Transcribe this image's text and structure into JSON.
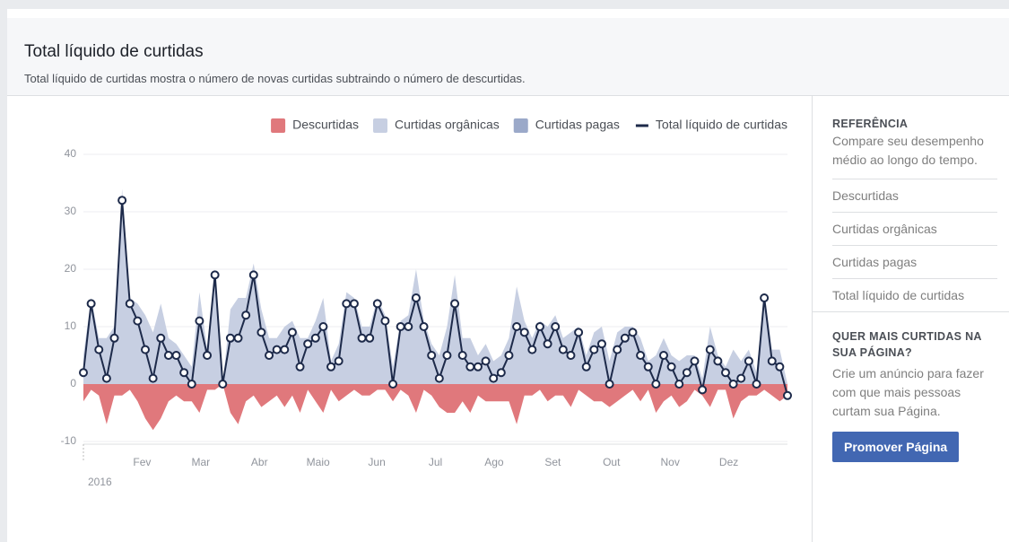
{
  "header": {
    "title": "Total líquido de curtidas",
    "subtitle": "Total líquido de curtidas mostra o número de novas curtidas subtraindo o número de descurtidas."
  },
  "chart_data": {
    "type": "area-line",
    "ylim": [
      -10,
      40
    ],
    "yticks": [
      -10,
      0,
      10,
      20,
      30,
      40
    ],
    "month_labels": [
      "Fev",
      "Mar",
      "Abr",
      "Maio",
      "Jun",
      "Jul",
      "Ago",
      "Set",
      "Out",
      "Nov",
      "Dez"
    ],
    "year_label": "2016",
    "grid": true,
    "series": [
      {
        "name": "Descurtidas",
        "color": "#e0787c",
        "kind": "area",
        "values": [
          -3,
          -1,
          -2,
          -7,
          -2,
          -2,
          -1,
          -3,
          -6,
          -8,
          -6,
          -3,
          -2,
          -3,
          -3,
          -5,
          -1,
          -1,
          0,
          -5,
          -7,
          -3,
          -2,
          -4,
          -3,
          -2,
          -4,
          -2,
          -5,
          -1,
          -3,
          -5,
          -1,
          -3,
          -2,
          -1,
          -2,
          -2,
          -1,
          -1,
          -3,
          -1,
          -2,
          -5,
          -1,
          -2,
          -4,
          -5,
          -5,
          -3,
          -5,
          -2,
          -3,
          -3,
          -3,
          -3,
          -7,
          -2,
          -2,
          -1,
          -3,
          -2,
          -2,
          -4,
          -1,
          -2,
          -3,
          -3,
          -4,
          -3,
          -2,
          -1,
          -3,
          -1,
          -5,
          -3,
          -2,
          -4,
          -3,
          -1,
          -2,
          -4,
          -1,
          -1,
          -6,
          -3,
          -2,
          -2,
          -1,
          -2,
          -3,
          -2
        ]
      },
      {
        "name": "Curtidas orgânicas",
        "color": "#c7cfe2",
        "kind": "area",
        "values": [
          5,
          15,
          8,
          8,
          10,
          34,
          15,
          14,
          12,
          9,
          14,
          8,
          7,
          5,
          3,
          16,
          6,
          20,
          0,
          13,
          15,
          15,
          21,
          13,
          8,
          8,
          10,
          11,
          8,
          8,
          11,
          15,
          4,
          7,
          16,
          15,
          10,
          10,
          15,
          12,
          3,
          11,
          12,
          20,
          11,
          7,
          5,
          10,
          19,
          8,
          8,
          5,
          7,
          4,
          5,
          8,
          17,
          11,
          8,
          11,
          10,
          12,
          8,
          9,
          10,
          5,
          9,
          10,
          4,
          9,
          10,
          10,
          8,
          4,
          5,
          8,
          5,
          4,
          5,
          5,
          1,
          10,
          5,
          3,
          6,
          4,
          6,
          2,
          16,
          6,
          6,
          0
        ]
      },
      {
        "name": "Curtidas pagas",
        "color": "#9ba9c9",
        "kind": "area",
        "values": [
          0,
          0,
          0,
          0,
          0,
          0,
          0,
          0,
          0,
          0,
          0,
          0,
          0,
          0,
          0,
          0,
          0,
          0,
          0,
          0,
          0,
          0,
          0,
          0,
          0,
          0,
          0,
          0,
          0,
          0,
          0,
          0,
          0,
          0,
          0,
          0,
          0,
          0,
          0,
          0,
          0,
          0,
          0,
          0,
          0,
          0,
          0,
          0,
          0,
          0,
          0,
          0,
          0,
          0,
          0,
          0,
          0,
          0,
          0,
          0,
          0,
          0,
          0,
          0,
          0,
          0,
          0,
          0,
          0,
          0,
          0,
          0,
          0,
          0,
          0,
          0,
          0,
          0,
          0,
          0,
          0,
          0,
          0,
          0,
          0,
          0,
          0,
          0,
          0,
          0,
          0,
          0
        ]
      },
      {
        "name": "Total líquido de curtidas",
        "color": "#1d2a4a",
        "kind": "line",
        "values": [
          2,
          14,
          6,
          1,
          8,
          32,
          14,
          11,
          6,
          1,
          8,
          5,
          5,
          2,
          0,
          11,
          5,
          19,
          0,
          8,
          8,
          12,
          19,
          9,
          5,
          6,
          6,
          9,
          3,
          7,
          8,
          10,
          3,
          4,
          14,
          14,
          8,
          8,
          14,
          11,
          0,
          10,
          10,
          15,
          10,
          5,
          1,
          5,
          14,
          5,
          3,
          3,
          4,
          1,
          2,
          5,
          10,
          9,
          6,
          10,
          7,
          10,
          6,
          5,
          9,
          3,
          6,
          7,
          0,
          6,
          8,
          9,
          5,
          3,
          0,
          5,
          3,
          0,
          2,
          4,
          -1,
          6,
          4,
          2,
          0,
          1,
          4,
          0,
          15,
          4,
          3,
          -2
        ]
      }
    ]
  },
  "sidebar": {
    "reference_title": "REFERÊNCIA",
    "reference_text": "Compare seu desempenho médio ao longo do tempo.",
    "items": [
      "Descurtidas",
      "Curtidas orgânicas",
      "Curtidas pagas",
      "Total líquido de curtidas"
    ],
    "promo_title": "QUER MAIS CURTIDAS NA SUA PÁGINA?",
    "promo_text": "Crie um anúncio para fazer com que mais pessoas curtam sua Página.",
    "button": "Promover Página"
  }
}
